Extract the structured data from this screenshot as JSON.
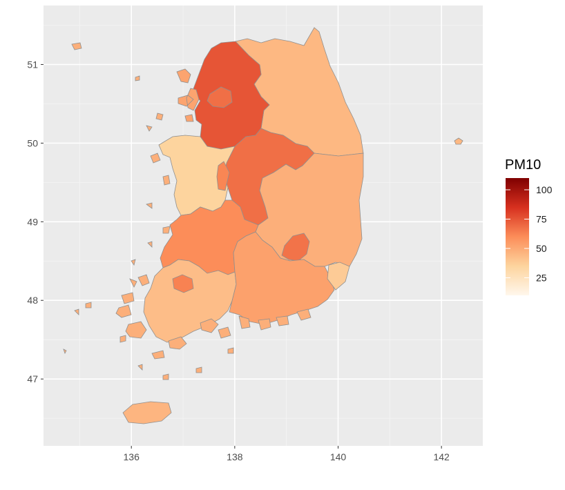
{
  "chart_data": {
    "type": "choropleth",
    "x_ticks": [
      136,
      138,
      140,
      142
    ],
    "y_ticks": [
      47,
      48,
      49,
      50,
      51
    ],
    "xlim": [
      134.3,
      142.8
    ],
    "ylim": [
      46.15,
      51.75
    ],
    "grid": true,
    "legend": {
      "title": "PM10",
      "ticks": [
        25,
        50,
        75,
        100
      ],
      "range": [
        10,
        110
      ],
      "colors": [
        "#fff7ec",
        "#fdd49e",
        "#fc8d59",
        "#d7301f",
        "#7f0000"
      ],
      "placement": "right"
    },
    "regions": [
      {
        "name": "gangwon",
        "value": 45
      },
      {
        "name": "gyeonggi",
        "value": 75
      },
      {
        "name": "seoul",
        "value": 68
      },
      {
        "name": "incheon",
        "value": 52
      },
      {
        "name": "chungbuk",
        "value": 68
      },
      {
        "name": "chungnam",
        "value": 35
      },
      {
        "name": "sejong",
        "value": 62
      },
      {
        "name": "daejeon",
        "value": 42
      },
      {
        "name": "gyeongbuk",
        "value": 48
      },
      {
        "name": "daegu",
        "value": 67
      },
      {
        "name": "jeonbuk",
        "value": 60
      },
      {
        "name": "jeonnam",
        "value": 43
      },
      {
        "name": "gwangju",
        "value": 63
      },
      {
        "name": "gyeongnam",
        "value": 53
      },
      {
        "name": "ulsan",
        "value": 38
      },
      {
        "name": "jeju",
        "value": 46
      },
      {
        "name": "dokdo",
        "value": 45
      },
      {
        "name": "islands-west",
        "value": 48
      }
    ]
  }
}
